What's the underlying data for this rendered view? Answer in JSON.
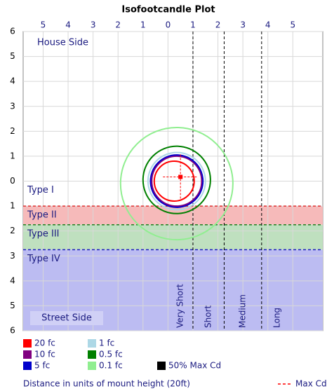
{
  "chart_data": {
    "type": "isofootcandle",
    "title": "Isofootcandle Plot",
    "x_axis_label": "Distance in units of mount height (20ft)",
    "top_label": "House Side",
    "bottom_label": "Street Side",
    "xlim": [
      -5.8,
      6.2
    ],
    "ylim": [
      -6,
      6
    ],
    "xticks": [
      {
        "value": -5,
        "label": "5"
      },
      {
        "value": -4,
        "label": "4"
      },
      {
        "value": -3,
        "label": "3"
      },
      {
        "value": -2,
        "label": "2"
      },
      {
        "value": -1,
        "label": "1"
      },
      0,
      1,
      2,
      3,
      4,
      5
    ],
    "yticks": [
      6,
      5,
      4,
      3,
      2,
      1,
      0,
      {
        "value": -1,
        "label": "1"
      },
      {
        "value": -2,
        "label": "2"
      },
      {
        "value": -3,
        "label": "3"
      },
      {
        "value": -4,
        "label": "4"
      },
      {
        "value": -5,
        "label": "5"
      },
      {
        "value": -6,
        "label": "6"
      }
    ],
    "grid": true,
    "regions": [
      {
        "name": "Type I",
        "range": [
          0,
          -1
        ]
      },
      {
        "name": "Type II",
        "range": [
          -1,
          -1.75
        ],
        "color": "#f6baba",
        "line_color": "#e03030"
      },
      {
        "name": "Type III",
        "range": [
          -1.75,
          -2.75
        ],
        "color": "#bfe0bf",
        "line_color": "#208020"
      },
      {
        "name": "Type IV",
        "range": [
          -2.75,
          -6
        ],
        "color": "#bcbcf2",
        "line_color": "#2020c0"
      }
    ],
    "distances": [
      {
        "name": "Very Short",
        "range": [
          0,
          1
        ]
      },
      {
        "name": "Short",
        "range": [
          1,
          2.25
        ]
      },
      {
        "name": "Medium",
        "range": [
          2.25,
          3.75
        ]
      },
      {
        "name": "Long",
        "range": [
          3.75,
          5
        ]
      }
    ],
    "series": [
      {
        "name": "20 fc",
        "color": "#ff0000",
        "cx": 0.25,
        "cy": 0.0,
        "r": 0.8
      },
      {
        "name": "10 fc",
        "color": "#800080",
        "cx": 0.35,
        "cy": 0.0,
        "r": 1.0
      },
      {
        "name": "5 fc",
        "color": "#0000cc",
        "cx": 0.35,
        "cy": 0.0,
        "r": 1.05
      },
      {
        "name": "1 fc",
        "color": "#add8e6",
        "cx": 0.35,
        "cy": 0.0,
        "r": 1.15
      },
      {
        "name": "0.5 fc",
        "color": "#008000",
        "cx": 0.35,
        "cy": 0.05,
        "r": 1.35
      },
      {
        "name": "0.1 fc",
        "color": "#90ee90",
        "cx": 0.35,
        "cy": -0.1,
        "r": 2.25
      },
      {
        "name": "50% Max Cd",
        "color": "#000000"
      }
    ],
    "max_cd": {
      "label": "Max Cd",
      "x": 0.5,
      "y": 0.17,
      "color": "#ff0000"
    }
  }
}
